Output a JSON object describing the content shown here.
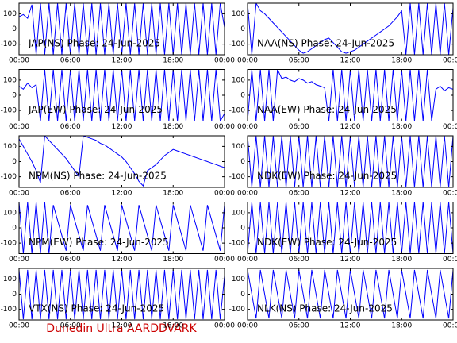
{
  "chart_data": [
    {
      "type": "line",
      "title": "JAP(NS) Phase: 24-Jun-2025",
      "color": "#0000ff",
      "x": [
        0,
        0.5,
        1,
        1.5,
        2,
        2.5,
        3,
        3.5,
        4,
        4.5,
        5,
        5.5,
        6,
        6.5,
        7,
        7.5,
        8,
        8.5,
        9,
        9.5,
        10,
        10.5,
        11,
        11.5,
        12,
        12.5,
        13,
        13.5,
        14,
        14.5,
        15,
        15.5,
        16,
        16.5,
        17,
        17.5,
        18,
        18.5,
        19,
        19.5,
        20,
        20.5,
        21,
        21.5,
        22,
        22.5,
        23,
        23.5,
        24
      ],
      "values": [
        80,
        95,
        70,
        160,
        -170,
        170,
        -170,
        170,
        -170,
        170,
        -170,
        170,
        -170,
        170,
        -170,
        170,
        -170,
        170,
        -170,
        170,
        -170,
        170,
        -170,
        170,
        -170,
        170,
        -170,
        170,
        -170,
        170,
        -170,
        170,
        -170,
        170,
        -170,
        170,
        -170,
        170,
        -170,
        170,
        -170,
        170,
        -170,
        170,
        -170,
        170,
        -170,
        170,
        10
      ],
      "xlim": [
        0,
        24
      ],
      "ylim": [
        -170,
        170
      ],
      "yticks": [
        -100,
        0,
        100
      ],
      "xticks": [
        {
          "value": 0,
          "label": "00:00"
        },
        {
          "value": 6,
          "label": "06:00"
        },
        {
          "value": 12,
          "label": "12:00"
        },
        {
          "value": 18,
          "label": "18:00"
        },
        {
          "value": 24,
          "label": "00:00"
        }
      ]
    },
    {
      "type": "line",
      "title": "NAA(NS) Phase: 24-Jun-2025",
      "color": "#0000ff",
      "x": [
        0,
        0.5,
        1,
        1.5,
        2,
        2.5,
        3,
        3.5,
        4,
        4.5,
        5,
        5.5,
        6,
        6.5,
        7,
        7.5,
        8,
        8.5,
        9,
        9.5,
        10,
        10.5,
        11,
        11.5,
        12,
        12.5,
        13,
        13.5,
        14,
        14.5,
        15,
        15.5,
        16,
        16.5,
        17,
        17.5,
        18,
        18.5,
        19,
        19.5,
        20,
        20.5,
        21,
        21.5,
        22,
        22.5,
        23,
        23.5,
        24
      ],
      "values": [
        170,
        -170,
        170,
        120,
        100,
        70,
        40,
        10,
        -20,
        -50,
        -80,
        -110,
        -140,
        -160,
        -150,
        -130,
        -110,
        -90,
        -70,
        -60,
        -90,
        -120,
        -150,
        -160,
        -150,
        -140,
        -120,
        -100,
        -80,
        -60,
        -40,
        -20,
        0,
        20,
        50,
        80,
        120,
        -170,
        170,
        -170,
        170,
        -170,
        170,
        -170,
        170,
        -170,
        170,
        -170,
        140
      ],
      "xlim": [
        0,
        24
      ],
      "ylim": [
        -170,
        170
      ],
      "yticks": [
        -100,
        0,
        100
      ],
      "xticks": [
        {
          "value": 0,
          "label": "00:00"
        },
        {
          "value": 6,
          "label": "06:00"
        },
        {
          "value": 12,
          "label": "12:00"
        },
        {
          "value": 18,
          "label": "18:00"
        },
        {
          "value": 24,
          "label": "00:00"
        }
      ]
    },
    {
      "type": "line",
      "title": "JAP(EW) Phase: 24-Jun-2025",
      "color": "#0000ff",
      "x": [
        0,
        0.5,
        1,
        1.5,
        2,
        2.5,
        3,
        3.5,
        4,
        4.5,
        5,
        5.5,
        6,
        6.5,
        7,
        7.5,
        8,
        8.5,
        9,
        9.5,
        10,
        10.5,
        11,
        11.5,
        12,
        12.5,
        13,
        13.5,
        14,
        14.5,
        15,
        15.5,
        16,
        16.5,
        17,
        17.5,
        18,
        18.5,
        19,
        19.5,
        20,
        20.5,
        21,
        21.5,
        22,
        22.5,
        23,
        23.5,
        24
      ],
      "values": [
        60,
        40,
        80,
        50,
        70,
        -170,
        170,
        -170,
        170,
        -170,
        170,
        -170,
        170,
        -170,
        170,
        -170,
        170,
        -170,
        170,
        -170,
        170,
        -170,
        170,
        -170,
        170,
        -170,
        170,
        -170,
        170,
        -170,
        170,
        -170,
        170,
        -170,
        170,
        -170,
        170,
        -170,
        170,
        -170,
        170,
        -170,
        170,
        -170,
        170,
        -170,
        170,
        -170,
        -120
      ],
      "xlim": [
        0,
        24
      ],
      "ylim": [
        -170,
        170
      ],
      "yticks": [
        -100,
        0,
        100
      ],
      "xticks": [
        {
          "value": 0,
          "label": "00:00"
        },
        {
          "value": 6,
          "label": "06:00"
        },
        {
          "value": 12,
          "label": "12:00"
        },
        {
          "value": 18,
          "label": "18:00"
        },
        {
          "value": 24,
          "label": "00:00"
        }
      ]
    },
    {
      "type": "line",
      "title": "NAA(EW) Phase: 24-Jun-2025",
      "color": "#0000ff",
      "x": [
        0,
        0.5,
        1,
        1.5,
        2,
        2.5,
        3,
        3.5,
        4,
        4.5,
        5,
        5.5,
        6,
        6.5,
        7,
        7.5,
        8,
        8.5,
        9,
        9.5,
        10,
        10.5,
        11,
        11.5,
        12,
        12.5,
        13,
        13.5,
        14,
        14.5,
        15,
        15.5,
        16,
        16.5,
        17,
        17.5,
        18,
        18.5,
        19,
        19.5,
        20,
        20.5,
        21,
        21.5,
        22,
        22.5,
        23,
        23.5,
        24
      ],
      "values": [
        -170,
        170,
        -170,
        170,
        -170,
        170,
        -170,
        170,
        110,
        120,
        100,
        90,
        110,
        100,
        80,
        90,
        70,
        60,
        50,
        -170,
        170,
        -170,
        170,
        -170,
        170,
        -170,
        170,
        -170,
        170,
        -170,
        170,
        -170,
        170,
        -170,
        170,
        -170,
        170,
        -170,
        170,
        -170,
        170,
        -170,
        170,
        -170,
        40,
        60,
        30,
        50,
        40
      ],
      "xlim": [
        0,
        24
      ],
      "ylim": [
        -170,
        170
      ],
      "yticks": [
        -100,
        0,
        100
      ],
      "xticks": [
        {
          "value": 0,
          "label": "00:00"
        },
        {
          "value": 6,
          "label": "06:00"
        },
        {
          "value": 12,
          "label": "12:00"
        },
        {
          "value": 18,
          "label": "18:00"
        },
        {
          "value": 24,
          "label": "00:00"
        }
      ]
    },
    {
      "type": "line",
      "title": "NPM(NS) Phase: 24-Jun-2025",
      "color": "#0000ff",
      "x": [
        0,
        0.5,
        1,
        1.5,
        2,
        2.5,
        3,
        3.5,
        4,
        4.5,
        5,
        5.5,
        6,
        6.5,
        7,
        7.5,
        8,
        8.5,
        9,
        9.5,
        10,
        10.5,
        11,
        11.5,
        12,
        12.5,
        13,
        13.5,
        14,
        14.5,
        15,
        15.5,
        16,
        16.5,
        17,
        17.5,
        18,
        18.5,
        19,
        19.5,
        20,
        20.5,
        21,
        21.5,
        22,
        22.5,
        23,
        23.5,
        24
      ],
      "values": [
        150,
        100,
        50,
        0,
        -60,
        -140,
        170,
        140,
        110,
        80,
        50,
        20,
        -20,
        -60,
        -100,
        170,
        160,
        150,
        140,
        120,
        110,
        90,
        70,
        50,
        30,
        0,
        -40,
        -80,
        -130,
        -160,
        -60,
        -40,
        -20,
        10,
        40,
        60,
        80,
        70,
        60,
        50,
        40,
        30,
        20,
        10,
        0,
        -10,
        -20,
        -30,
        -40
      ],
      "xlim": [
        0,
        24
      ],
      "ylim": [
        -170,
        170
      ],
      "yticks": [
        -100,
        0,
        100
      ],
      "xticks": [
        {
          "value": 0,
          "label": "00:00"
        },
        {
          "value": 6,
          "label": "06:00"
        },
        {
          "value": 12,
          "label": "12:00"
        },
        {
          "value": 18,
          "label": "18:00"
        },
        {
          "value": 24,
          "label": "00:00"
        }
      ]
    },
    {
      "type": "line",
      "title": "NDK(EW) Phase: 24-Jun-2025",
      "color": "#0000ff",
      "x": [
        0,
        0.5,
        1,
        1.5,
        2,
        2.5,
        3,
        3.5,
        4,
        4.5,
        5,
        5.5,
        6,
        6.5,
        7,
        7.5,
        8,
        8.5,
        9,
        9.5,
        10,
        10.5,
        11,
        11.5,
        12,
        12.5,
        13,
        13.5,
        14,
        14.5,
        15,
        15.5,
        16,
        16.5,
        17,
        17.5,
        18,
        18.5,
        19,
        19.5,
        20,
        20.5,
        21,
        21.5,
        22,
        22.5,
        23,
        23.5,
        24
      ],
      "values": [
        170,
        -170,
        170,
        -170,
        170,
        -170,
        170,
        -170,
        170,
        -170,
        170,
        -170,
        170,
        -170,
        170,
        -170,
        170,
        -170,
        170,
        -170,
        170,
        -170,
        170,
        -170,
        170,
        -170,
        170,
        -170,
        170,
        -170,
        170,
        -170,
        170,
        -170,
        170,
        -170,
        170,
        -170,
        170,
        -170,
        170,
        -170,
        170,
        -170,
        170,
        -170,
        170,
        -170,
        170
      ],
      "xlim": [
        0,
        24
      ],
      "ylim": [
        -170,
        170
      ],
      "yticks": [
        -100,
        0,
        100
      ],
      "xticks": [
        {
          "value": 0,
          "label": "00:00"
        },
        {
          "value": 6,
          "label": "06:00"
        },
        {
          "value": 12,
          "label": "12:00"
        },
        {
          "value": 18,
          "label": "18:00"
        },
        {
          "value": 24,
          "label": "00:00"
        }
      ]
    },
    {
      "type": "line",
      "title": "NPM(EW) Phase: 24-Jun-2025",
      "color": "#0000ff",
      "x": [
        0,
        0.5,
        1,
        1.5,
        2,
        2.5,
        3,
        3.5,
        4,
        4.5,
        5,
        5.5,
        6,
        6.5,
        7,
        7.5,
        8,
        8.5,
        9,
        9.5,
        10,
        10.5,
        11,
        11.5,
        12,
        12.5,
        13,
        13.5,
        14,
        14.5,
        15,
        15.5,
        16,
        16.5,
        17,
        17.5,
        18,
        18.5,
        19,
        19.5,
        20,
        20.5,
        21,
        21.5,
        22,
        22.5,
        23,
        23.5,
        24
      ],
      "values": [
        170,
        -170,
        170,
        -170,
        170,
        -170,
        170,
        -170,
        150,
        50,
        -50,
        -150,
        150,
        50,
        -50,
        -150,
        150,
        50,
        -50,
        -150,
        150,
        50,
        -50,
        -150,
        150,
        50,
        -50,
        -150,
        150,
        50,
        -50,
        -150,
        150,
        50,
        -50,
        -150,
        150,
        50,
        -50,
        -150,
        150,
        50,
        -50,
        -150,
        150,
        50,
        -50,
        -150,
        150
      ],
      "xlim": [
        0,
        24
      ],
      "ylim": [
        -170,
        170
      ],
      "yticks": [
        -100,
        0,
        100
      ],
      "xticks": [
        {
          "value": 0,
          "label": "00:00"
        },
        {
          "value": 6,
          "label": "06:00"
        },
        {
          "value": 12,
          "label": "12:00"
        },
        {
          "value": 18,
          "label": "18:00"
        },
        {
          "value": 24,
          "label": "00:00"
        }
      ]
    },
    {
      "type": "line",
      "title": "NDK(EW) Phase: 24-Jun-2025",
      "color": "#0000ff",
      "x": [
        0,
        0.5,
        1,
        1.5,
        2,
        2.5,
        3,
        3.5,
        4,
        4.5,
        5,
        5.5,
        6,
        6.5,
        7,
        7.5,
        8,
        8.5,
        9,
        9.5,
        10,
        10.5,
        11,
        11.5,
        12,
        12.5,
        13,
        13.5,
        14,
        14.5,
        15,
        15.5,
        16,
        16.5,
        17,
        17.5,
        18,
        18.5,
        19,
        19.5,
        20,
        20.5,
        21,
        21.5,
        22,
        22.5,
        23,
        23.5,
        24
      ],
      "values": [
        -170,
        170,
        -170,
        170,
        -170,
        170,
        -170,
        170,
        -170,
        170,
        -170,
        170,
        -170,
        170,
        -170,
        170,
        -170,
        170,
        -170,
        170,
        -170,
        170,
        -170,
        170,
        -170,
        170,
        -170,
        170,
        -170,
        170,
        -170,
        170,
        -170,
        170,
        -170,
        170,
        -170,
        170,
        -170,
        170,
        -170,
        170,
        -170,
        170,
        -170,
        170,
        -170,
        170,
        -170
      ],
      "xlim": [
        0,
        24
      ],
      "ylim": [
        -170,
        170
      ],
      "yticks": [
        -100,
        0,
        100
      ],
      "xticks": [
        {
          "value": 0,
          "label": "00:00"
        },
        {
          "value": 6,
          "label": "06:00"
        },
        {
          "value": 12,
          "label": "12:00"
        },
        {
          "value": 18,
          "label": "18:00"
        },
        {
          "value": 24,
          "label": "00:00"
        }
      ]
    },
    {
      "type": "line",
      "title": "VTX(NS) Phase: 24-Jun-2025",
      "color": "#0000ff",
      "x": [
        0,
        0.5,
        1,
        1.5,
        2,
        2.5,
        3,
        3.5,
        4,
        4.5,
        5,
        5.5,
        6,
        6.5,
        7,
        7.5,
        8,
        8.5,
        9,
        9.5,
        10,
        10.5,
        11,
        11.5,
        12,
        12.5,
        13,
        13.5,
        14,
        14.5,
        15,
        15.5,
        16,
        16.5,
        17,
        17.5,
        18,
        18.5,
        19,
        19.5,
        20,
        20.5,
        21,
        21.5,
        22,
        22.5,
        23,
        23.5,
        24
      ],
      "values": [
        160,
        -165,
        160,
        -165,
        160,
        -165,
        160,
        -165,
        160,
        -165,
        160,
        -165,
        160,
        -165,
        160,
        -165,
        160,
        -165,
        160,
        -165,
        160,
        -165,
        160,
        -165,
        160,
        -165,
        160,
        -165,
        160,
        -165,
        160,
        -165,
        160,
        -165,
        160,
        -165,
        160,
        -165,
        160,
        -165,
        160,
        -165,
        160,
        -165,
        160,
        -165,
        160,
        -165,
        120
      ],
      "xlim": [
        0,
        24
      ],
      "ylim": [
        -170,
        170
      ],
      "yticks": [
        -100,
        0,
        100
      ],
      "xticks": [
        {
          "value": 0,
          "label": "00:00"
        },
        {
          "value": 6,
          "label": "06:00"
        },
        {
          "value": 12,
          "label": "12:00"
        },
        {
          "value": 18,
          "label": "18:00"
        },
        {
          "value": 24,
          "label": "00:00"
        }
      ]
    },
    {
      "type": "line",
      "title": "NLK(NS) Phase: 24-Jun-2025",
      "color": "#0000ff",
      "x": [
        0,
        0.5,
        1,
        1.5,
        2,
        2.5,
        3,
        3.5,
        4,
        4.5,
        5,
        5.5,
        6,
        6.5,
        7,
        7.5,
        8,
        8.5,
        9,
        9.5,
        10,
        10.5,
        11,
        11.5,
        12,
        12.5,
        13,
        13.5,
        14,
        14.5,
        15,
        15.5,
        16,
        16.5,
        17,
        17.5,
        18,
        18.5,
        19,
        19.5,
        20,
        20.5,
        21,
        21.5,
        22,
        22.5,
        23,
        23.5,
        24
      ],
      "values": [
        160,
        0,
        -160,
        160,
        0,
        -160,
        160,
        0,
        -160,
        160,
        0,
        -160,
        160,
        0,
        -160,
        160,
        0,
        -160,
        160,
        0,
        -160,
        160,
        0,
        -160,
        160,
        0,
        -160,
        160,
        0,
        -160,
        160,
        0,
        -160,
        160,
        0,
        -160,
        160,
        0,
        -160,
        160,
        0,
        -160,
        160,
        0,
        -160,
        160,
        0,
        -160,
        160
      ],
      "xlim": [
        0,
        24
      ],
      "ylim": [
        -170,
        170
      ],
      "yticks": [
        -100,
        0,
        100
      ],
      "xticks": [
        {
          "value": 0,
          "label": "00:00"
        },
        {
          "value": 6,
          "label": "06:00"
        },
        {
          "value": 12,
          "label": "12:00"
        },
        {
          "value": 18,
          "label": "18:00"
        },
        {
          "value": 24,
          "label": "00:00"
        }
      ]
    }
  ],
  "footer": "Dunedin Ultra AARDDVARK"
}
